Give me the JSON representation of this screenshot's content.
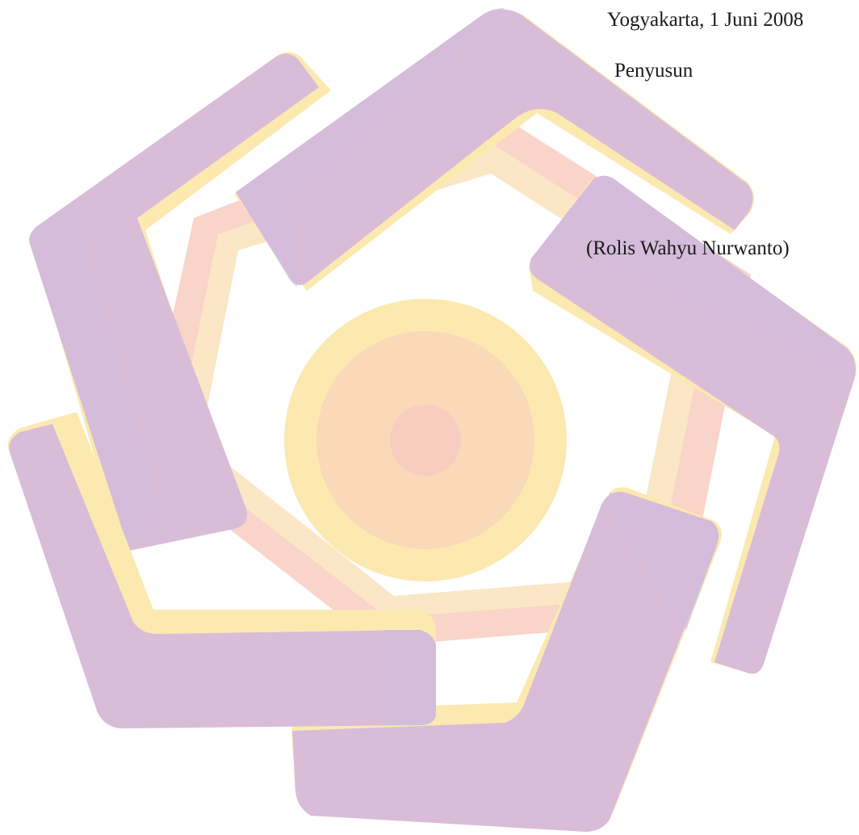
{
  "signature_block": {
    "place_date": "Yogyakarta, 1 Juni 2008",
    "role": "Penyusun",
    "name": "(Rolis Wahyu Nurwanto)"
  },
  "watermark": {
    "icon": "pentagonal-logo-watermark",
    "colors": {
      "purple": "#d8bdd8",
      "purple_shadow": "#d2bcdb",
      "yellow": "#fce9b0",
      "peach": "#f9d6b8",
      "salmon": "#f8cdc0"
    }
  }
}
